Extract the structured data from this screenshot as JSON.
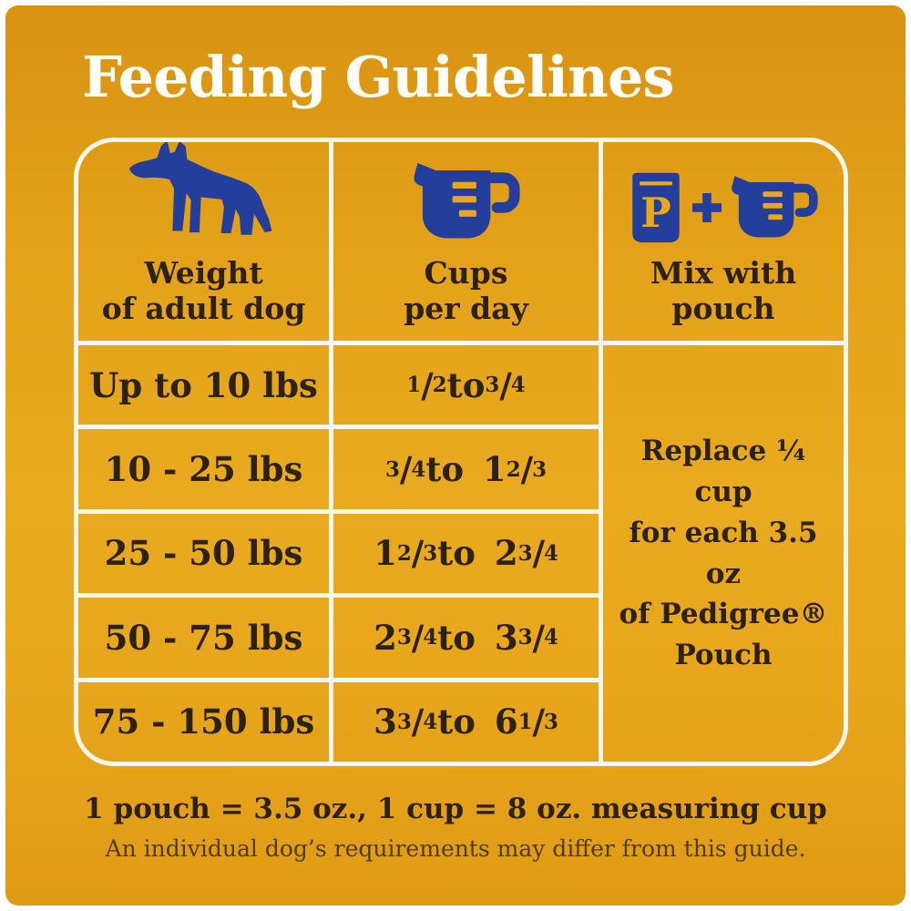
{
  "title": "Feeding Guidelines",
  "colors": {
    "background_top": "#D89212",
    "background_mid": "#E9AA1F",
    "background_bottom": "#E09A14",
    "icon_blue": "#243E9B",
    "icon_accent_orange": "#E9A71D",
    "text_dark": "#2D2110",
    "grid_line_cream": "#FBF6EB",
    "title_white": "#FFFDF6"
  },
  "table": {
    "headers": [
      {
        "icon": "dog-icon",
        "lines": [
          "Weight",
          "of adult dog"
        ]
      },
      {
        "icon": "measuring-cup-icon",
        "lines": [
          "Cups",
          "per day"
        ]
      },
      {
        "icon": "pouch-plus-cup-icon",
        "lines": [
          "Mix with",
          "pouch"
        ]
      }
    ],
    "pouch_letter": "P",
    "plus_sign": "+",
    "rows": [
      {
        "weight": "Up to 10 lbs",
        "cups": "1/2 to 3/4"
      },
      {
        "weight": "10 - 25 lbs",
        "cups": "3/4 to 1 2/3"
      },
      {
        "weight": "25 - 50 lbs",
        "cups": "1 2/3 to 2 3/4"
      },
      {
        "weight": "50 - 75 lbs",
        "cups": "2 3/4 to 3 3/4"
      },
      {
        "weight": "75 - 150 lbs",
        "cups": "3 3/4 to 6 1/3"
      }
    ],
    "mix_note_lines": [
      "Replace ¼ cup",
      "for each 3.5 oz",
      "of Pedigree®",
      "Pouch"
    ]
  },
  "footer": {
    "equivalence": "1 pouch = 3.5 oz., 1 cup = 8 oz. measuring cup",
    "disclaimer": "An individual dog’s requirements may differ from this guide."
  }
}
